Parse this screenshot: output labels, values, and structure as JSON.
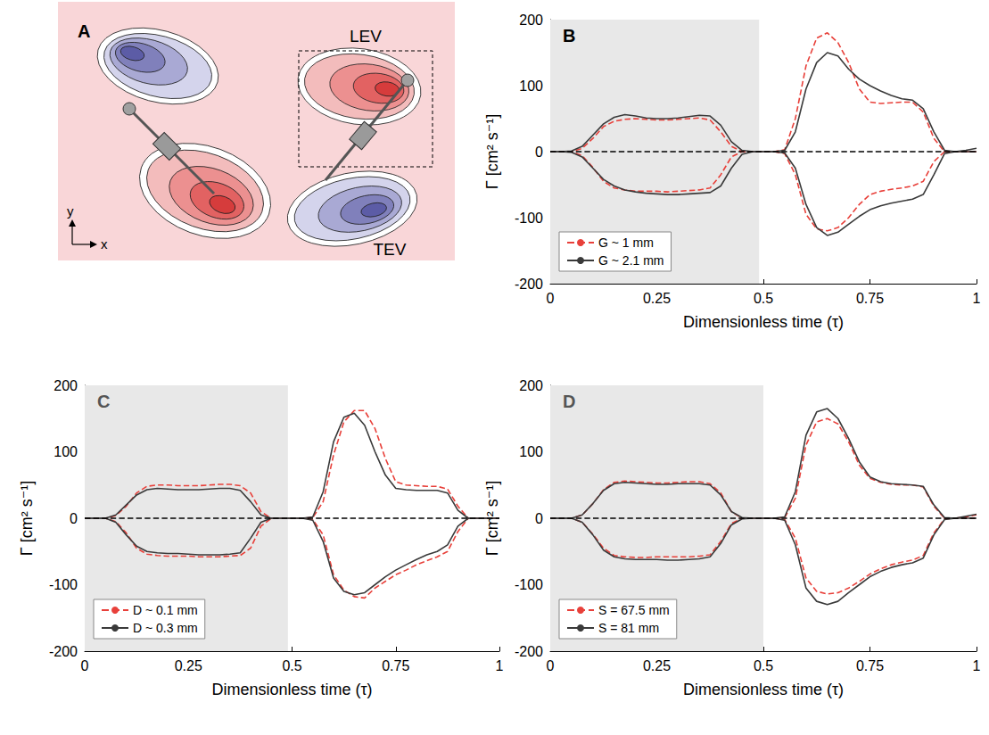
{
  "panel_a": {
    "letter": "A",
    "labels": {
      "leading_edge": "LEV",
      "trailing_edge": "TEV"
    },
    "axes": {
      "x": "x",
      "y": "y"
    }
  },
  "chart_data": [
    {
      "type": "line",
      "letter": "B",
      "xlabel": "Dimensionless time (τ)",
      "ylabel": "Γ [cm² s⁻¹]",
      "x": [
        0,
        0.025,
        0.05,
        0.075,
        0.1,
        0.125,
        0.15,
        0.175,
        0.2,
        0.225,
        0.25,
        0.275,
        0.3,
        0.325,
        0.35,
        0.375,
        0.4,
        0.425,
        0.45,
        0.475,
        0.5,
        0.525,
        0.55,
        0.575,
        0.6,
        0.625,
        0.65,
        0.675,
        0.7,
        0.725,
        0.75,
        0.775,
        0.8,
        0.825,
        0.85,
        0.875,
        0.9,
        0.925,
        0.95,
        0.975,
        1
      ],
      "xlim": [
        0,
        1
      ],
      "xticks": [
        0,
        0.25,
        0.5,
        0.75,
        1
      ],
      "ylim": [
        -200,
        200
      ],
      "yticks": [
        -200,
        -100,
        0,
        100,
        200
      ],
      "grid": false,
      "legend": "lower left",
      "shaded_region": [
        0,
        0.49
      ],
      "reference_line": 0,
      "series": [
        {
          "name": "G ~ 1 mm",
          "color": "#e8403a",
          "line_style": "dashed",
          "values_positive": [
            0,
            0,
            0,
            5,
            20,
            38,
            46,
            49,
            50,
            49,
            48,
            48,
            49,
            50,
            51,
            48,
            30,
            8,
            0,
            0,
            0,
            0,
            3,
            50,
            130,
            172,
            180,
            165,
            135,
            95,
            75,
            73,
            74,
            75,
            75,
            60,
            20,
            0,
            0,
            0,
            0
          ],
          "values_negative": [
            0,
            0,
            0,
            -6,
            -24,
            -45,
            -55,
            -58,
            -60,
            -60,
            -60,
            -61,
            -60,
            -59,
            -58,
            -55,
            -35,
            -8,
            0,
            0,
            0,
            0,
            -3,
            -35,
            -95,
            -117,
            -120,
            -115,
            -100,
            -80,
            -65,
            -60,
            -57,
            -55,
            -52,
            -45,
            -15,
            0,
            0,
            0,
            0
          ]
        },
        {
          "name": "G ~ 2.1 mm",
          "color": "#3a3a3a",
          "line_style": "solid",
          "values_positive": [
            0,
            0,
            1,
            8,
            25,
            42,
            52,
            56,
            54,
            51,
            50,
            50,
            51,
            53,
            55,
            54,
            40,
            15,
            2,
            0,
            0,
            0,
            2,
            30,
            95,
            135,
            150,
            145,
            125,
            110,
            100,
            92,
            85,
            80,
            78,
            65,
            30,
            2,
            0,
            2,
            5
          ],
          "values_negative": [
            0,
            0,
            -1,
            -8,
            -25,
            -42,
            -52,
            -58,
            -61,
            -63,
            -64,
            -65,
            -65,
            -64,
            -63,
            -62,
            -52,
            -25,
            -4,
            0,
            0,
            0,
            -2,
            -25,
            -80,
            -115,
            -127,
            -122,
            -110,
            -98,
            -88,
            -82,
            -78,
            -75,
            -72,
            -65,
            -35,
            -3,
            0,
            0,
            0
          ]
        }
      ]
    },
    {
      "type": "line",
      "letter": "C",
      "xlabel": "Dimensionless time (τ)",
      "ylabel": "Γ [cm² s⁻¹]",
      "x": [
        0,
        0.025,
        0.05,
        0.075,
        0.1,
        0.125,
        0.15,
        0.175,
        0.2,
        0.225,
        0.25,
        0.275,
        0.3,
        0.325,
        0.35,
        0.375,
        0.4,
        0.425,
        0.45,
        0.475,
        0.5,
        0.525,
        0.55,
        0.575,
        0.6,
        0.625,
        0.65,
        0.675,
        0.7,
        0.725,
        0.75,
        0.775,
        0.8,
        0.825,
        0.85,
        0.875,
        0.9,
        0.925,
        0.95,
        0.975,
        1
      ],
      "xlim": [
        0,
        1
      ],
      "xticks": [
        0,
        0.25,
        0.5,
        0.75,
        1
      ],
      "ylim": [
        -200,
        200
      ],
      "yticks": [
        -200,
        -100,
        0,
        100,
        200
      ],
      "grid": false,
      "legend": "lower left",
      "shaded_region": [
        0,
        0.49
      ],
      "reference_line": 0,
      "series": [
        {
          "name": "D ~ 0.1 mm",
          "color": "#e8403a",
          "line_style": "dashed",
          "values_positive": [
            0,
            0,
            0,
            4,
            18,
            38,
            48,
            50,
            50,
            49,
            49,
            49,
            50,
            51,
            51,
            49,
            38,
            10,
            0,
            0,
            0,
            0,
            1,
            25,
            95,
            145,
            162,
            162,
            135,
            90,
            55,
            50,
            49,
            48,
            48,
            44,
            18,
            0,
            0,
            0,
            0
          ],
          "values_negative": [
            0,
            0,
            0,
            -5,
            -22,
            -45,
            -54,
            -56,
            -57,
            -57,
            -57,
            -58,
            -58,
            -58,
            -57,
            -56,
            -45,
            -12,
            0,
            0,
            0,
            0,
            -2,
            -25,
            -85,
            -108,
            -118,
            -120,
            -105,
            -95,
            -85,
            -78,
            -70,
            -64,
            -58,
            -50,
            -20,
            0,
            0,
            0,
            0
          ]
        },
        {
          "name": "D ~ 0.3 mm",
          "color": "#3a3a3a",
          "line_style": "solid",
          "values_positive": [
            0,
            0,
            0,
            5,
            20,
            35,
            43,
            45,
            44,
            43,
            43,
            43,
            44,
            45,
            45,
            42,
            25,
            5,
            0,
            0,
            0,
            0,
            2,
            40,
            115,
            152,
            158,
            140,
            100,
            65,
            45,
            43,
            42,
            42,
            42,
            38,
            12,
            0,
            0,
            0,
            0
          ],
          "values_negative": [
            0,
            0,
            0,
            -6,
            -25,
            -42,
            -50,
            -52,
            -53,
            -53,
            -54,
            -55,
            -55,
            -55,
            -54,
            -52,
            -30,
            -6,
            0,
            0,
            0,
            0,
            -3,
            -35,
            -90,
            -110,
            -115,
            -112,
            -100,
            -88,
            -78,
            -70,
            -62,
            -55,
            -50,
            -40,
            -12,
            0,
            0,
            0,
            0
          ]
        }
      ]
    },
    {
      "type": "line",
      "letter": "D",
      "xlabel": "Dimensionless time (τ)",
      "ylabel": "Γ [cm² s⁻¹]",
      "x": [
        0,
        0.025,
        0.05,
        0.075,
        0.1,
        0.125,
        0.15,
        0.175,
        0.2,
        0.225,
        0.25,
        0.275,
        0.3,
        0.325,
        0.35,
        0.375,
        0.4,
        0.425,
        0.45,
        0.475,
        0.5,
        0.525,
        0.55,
        0.575,
        0.6,
        0.625,
        0.65,
        0.675,
        0.7,
        0.725,
        0.75,
        0.775,
        0.8,
        0.825,
        0.85,
        0.875,
        0.9,
        0.925,
        0.95,
        0.975,
        1
      ],
      "xlim": [
        0,
        1
      ],
      "xticks": [
        0,
        0.25,
        0.5,
        0.75,
        1
      ],
      "ylim": [
        -200,
        200
      ],
      "yticks": [
        -200,
        -100,
        0,
        100,
        200
      ],
      "grid": false,
      "legend": "lower left",
      "shaded_region": [
        0,
        0.5
      ],
      "reference_line": 0,
      "series": [
        {
          "name": "S = 67.5 mm",
          "color": "#e8403a",
          "line_style": "dashed",
          "values_positive": [
            0,
            0,
            0,
            5,
            22,
            43,
            54,
            56,
            55,
            54,
            53,
            53,
            54,
            55,
            55,
            52,
            38,
            10,
            0,
            0,
            0,
            0,
            1,
            30,
            110,
            145,
            150,
            142,
            115,
            80,
            60,
            54,
            51,
            50,
            50,
            47,
            18,
            0,
            0,
            2,
            5
          ],
          "values_negative": [
            0,
            0,
            0,
            -6,
            -24,
            -45,
            -56,
            -58,
            -59,
            -59,
            -58,
            -58,
            -58,
            -58,
            -57,
            -55,
            -35,
            -8,
            0,
            0,
            0,
            0,
            -2,
            -30,
            -90,
            -110,
            -114,
            -112,
            -105,
            -95,
            -84,
            -76,
            -70,
            -66,
            -63,
            -56,
            -22,
            -1,
            0,
            0,
            0
          ]
        },
        {
          "name": "S = 81 mm",
          "color": "#3a3a3a",
          "line_style": "solid",
          "values_positive": [
            0,
            0,
            0,
            5,
            22,
            42,
            52,
            54,
            53,
            52,
            51,
            51,
            52,
            52,
            52,
            50,
            35,
            10,
            1,
            0,
            0,
            0,
            2,
            40,
            125,
            160,
            165,
            150,
            120,
            85,
            62,
            55,
            52,
            51,
            50,
            48,
            20,
            1,
            0,
            3,
            6
          ],
          "values_negative": [
            0,
            0,
            0,
            -6,
            -25,
            -48,
            -58,
            -61,
            -62,
            -62,
            -62,
            -63,
            -63,
            -62,
            -61,
            -58,
            -38,
            -10,
            -1,
            0,
            0,
            0,
            -3,
            -40,
            -105,
            -125,
            -130,
            -125,
            -112,
            -100,
            -88,
            -80,
            -74,
            -70,
            -67,
            -60,
            -25,
            -2,
            0,
            0,
            0
          ]
        }
      ]
    }
  ]
}
